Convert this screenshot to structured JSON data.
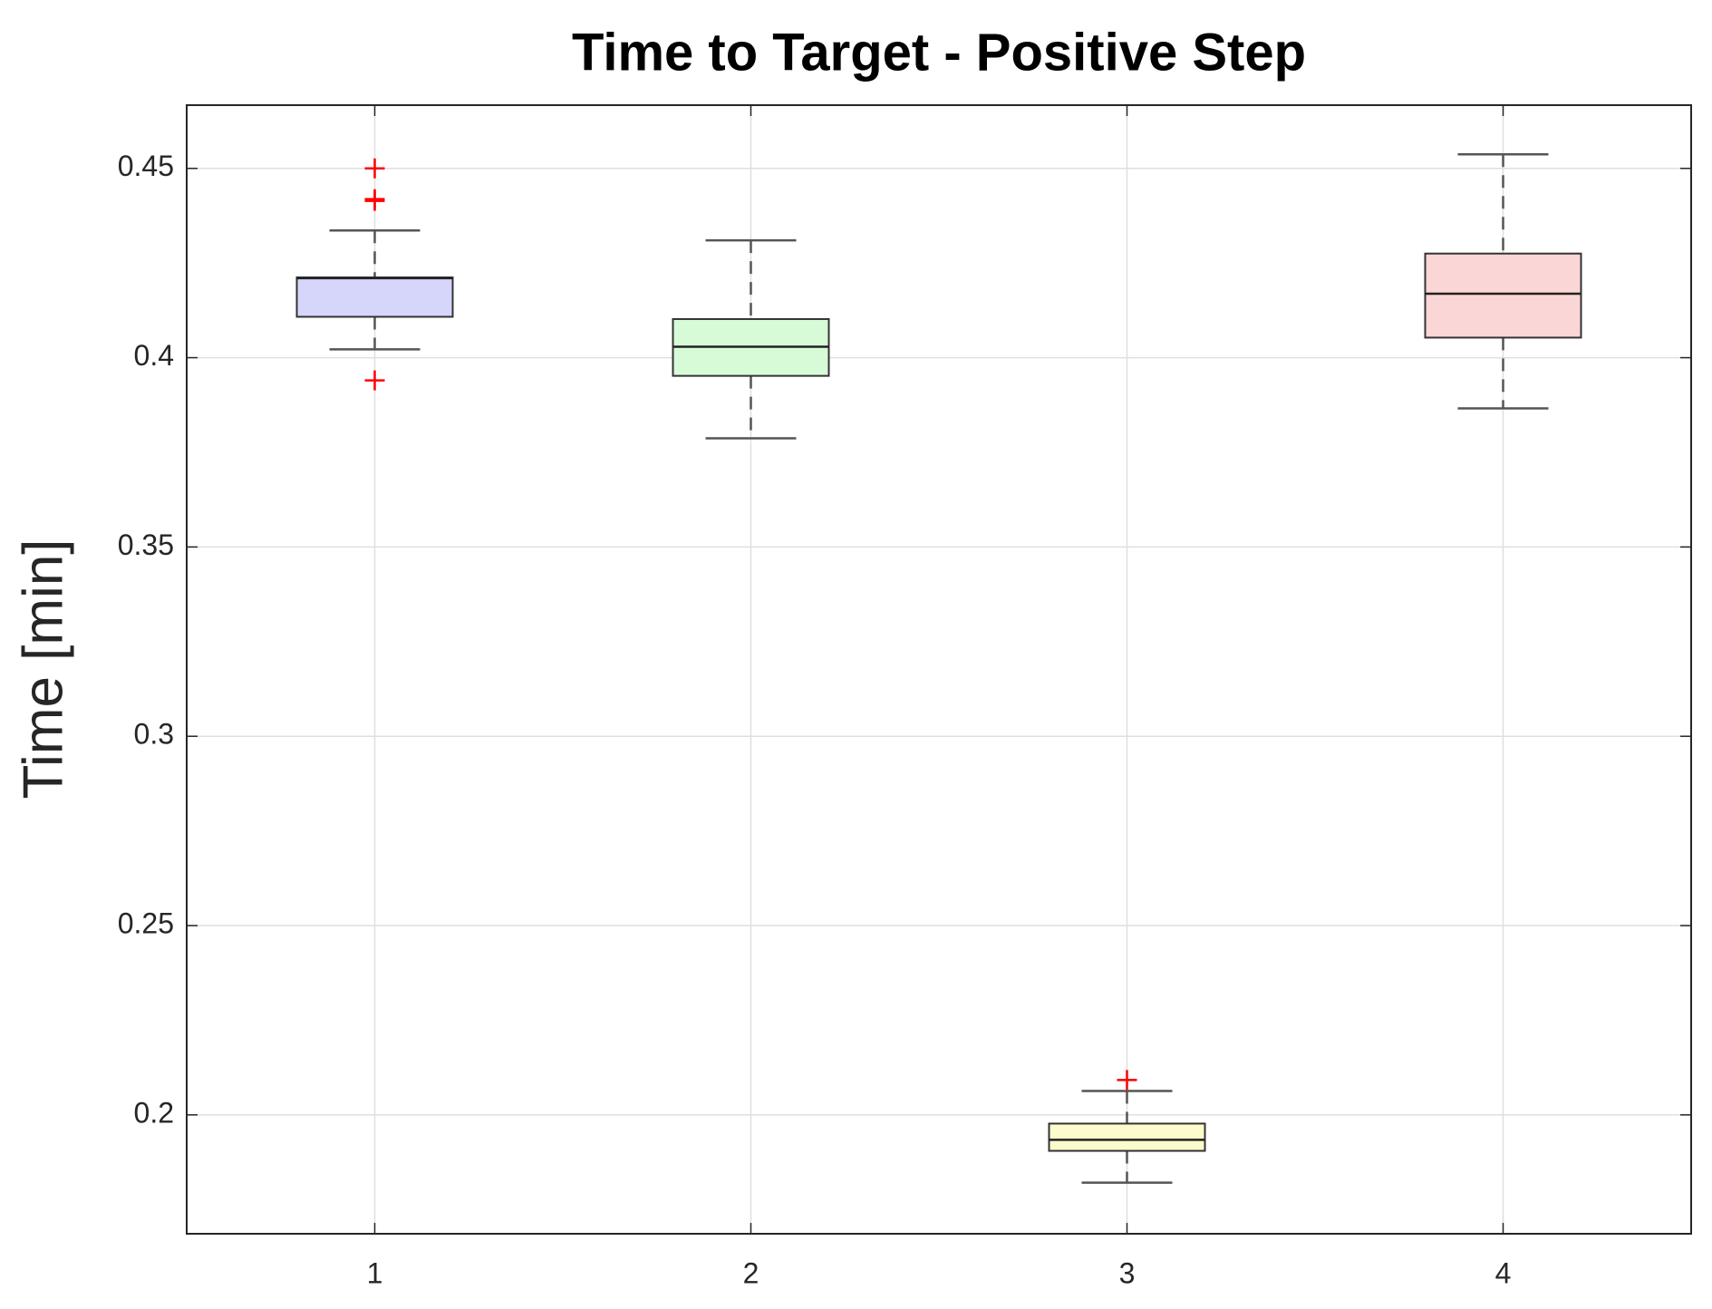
{
  "chart_data": {
    "type": "box",
    "title": "Time to Target - Positive Step",
    "y_label": "Time [min]",
    "categories": [
      "1",
      "2",
      "3",
      "4"
    ],
    "boxes": [
      {
        "color": "#d6d6fb",
        "whisker_low": 0.4022,
        "q1": 0.4108,
        "median": 0.421,
        "q3": 0.4212,
        "whisker_high": 0.4336,
        "outliers": [
          0.45,
          0.4419,
          0.4414,
          0.394
        ]
      },
      {
        "color": "#d6fbd6",
        "whisker_low": 0.3787,
        "q1": 0.3952,
        "median": 0.4029,
        "q3": 0.4102,
        "whisker_high": 0.431,
        "outliers": []
      },
      {
        "color": "#fbfbcc",
        "whisker_low": 0.1821,
        "q1": 0.1905,
        "median": 0.1934,
        "q3": 0.1977,
        "whisker_high": 0.2063,
        "outliers": [
          0.2092
        ]
      },
      {
        "color": "#fbd6d6",
        "whisker_low": 0.3866,
        "q1": 0.4053,
        "median": 0.4169,
        "q3": 0.4275,
        "whisker_high": 0.4537,
        "outliers": []
      }
    ],
    "outlier_color": "#ff0000",
    "ylim": [
      0.1686,
      0.4667
    ],
    "yticks": [
      0.2,
      0.25,
      0.3,
      0.35,
      0.4,
      0.45
    ],
    "grid": true
  }
}
